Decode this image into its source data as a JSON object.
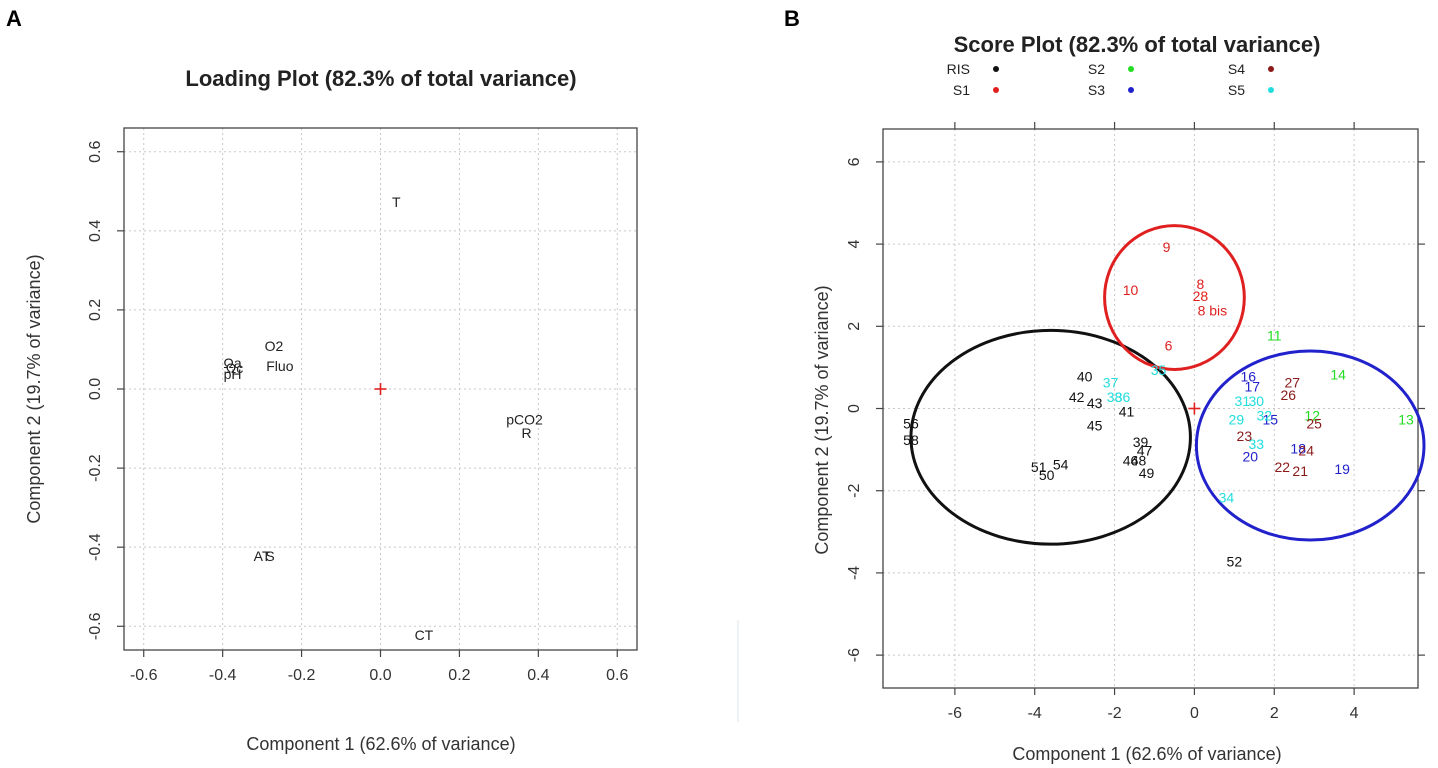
{
  "colors": {
    "RIS": "#111111",
    "S1": "#e02020",
    "S2": "#22dd22",
    "S3": "#2222cc",
    "S4": "#8b1a1a",
    "S5": "#22dddd",
    "origin": "#e02020"
  },
  "chart_data": [
    {
      "panel": "A",
      "type": "scatter",
      "title": "Loading Plot (82.3% of total variance)",
      "xlabel": "Component 1 (62.6% of variance)",
      "ylabel": "Component 2 (19.7% of variance)",
      "xlim": [
        -0.65,
        0.65
      ],
      "ylim": [
        -0.66,
        0.66
      ],
      "xticks": [
        -0.6,
        -0.4,
        -0.2,
        0.0,
        0.2,
        0.4,
        0.6
      ],
      "yticks": [
        -0.6,
        -0.4,
        -0.2,
        0.0,
        0.2,
        0.4,
        0.6
      ],
      "tick_labels_x": [
        "-0.6",
        "-0.4",
        "-0.2",
        "0.0",
        "0.2",
        "0.4",
        "0.6"
      ],
      "tick_labels_y": [
        "-0.6",
        "-0.4",
        "-0.2",
        "0.0",
        "0.2",
        "0.4",
        "0.6"
      ],
      "grid": true,
      "origin_marker": [
        0,
        0
      ],
      "points": [
        {
          "label": "T",
          "x": 0.04,
          "y": 0.47
        },
        {
          "label": "O2",
          "x": -0.27,
          "y": 0.105
        },
        {
          "label": "Fluo",
          "x": -0.255,
          "y": 0.055
        },
        {
          "label": "Ωa",
          "x": -0.375,
          "y": 0.062
        },
        {
          "label": "Ωc",
          "x": -0.37,
          "y": 0.05
        },
        {
          "label": "pH",
          "x": -0.375,
          "y": 0.035
        },
        {
          "label": "pCO2",
          "x": 0.365,
          "y": -0.08
        },
        {
          "label": "R",
          "x": 0.37,
          "y": -0.115
        },
        {
          "label": "AT",
          "x": -0.3,
          "y": -0.425
        },
        {
          "label": "S",
          "x": -0.28,
          "y": -0.425
        },
        {
          "label": "CT",
          "x": 0.11,
          "y": -0.625
        }
      ]
    },
    {
      "panel": "B",
      "type": "scatter",
      "title": "Score Plot (82.3% of total variance)",
      "xlabel": "Component 1 (62.6% of variance)",
      "ylabel": "Component 2 (19.7% of variance)",
      "xlim": [
        -7.8,
        5.6
      ],
      "ylim": [
        -6.8,
        6.8
      ],
      "xticks": [
        -6,
        -4,
        -2,
        0,
        2,
        4
      ],
      "yticks": [
        -6,
        -4,
        -2,
        0,
        2,
        4,
        6
      ],
      "tick_labels_x": [
        "-6",
        "-4",
        "-2",
        "0",
        "2",
        "4"
      ],
      "tick_labels_y": [
        "-6",
        "-4",
        "-2",
        "0",
        "2",
        "4",
        "6"
      ],
      "grid": true,
      "origin_marker": [
        0,
        0
      ],
      "legend": [
        {
          "name": "RIS",
          "group": "RIS"
        },
        {
          "name": "S1",
          "group": "S1"
        },
        {
          "name": "S2",
          "group": "S2"
        },
        {
          "name": "S3",
          "group": "S3"
        },
        {
          "name": "S4",
          "group": "S4"
        },
        {
          "name": "S5",
          "group": "S5"
        }
      ],
      "ellipses": [
        {
          "group": "RIS",
          "cx": -3.6,
          "cy": -0.7,
          "rx": 3.5,
          "ry": 2.6
        },
        {
          "group": "S1",
          "cx": -0.5,
          "cy": 2.7,
          "rx": 1.75,
          "ry": 1.75
        },
        {
          "group": "S3",
          "cx": 2.9,
          "cy": -0.9,
          "rx": 2.85,
          "ry": 2.3
        }
      ],
      "points": [
        {
          "label": "9",
          "x": -0.7,
          "y": 3.9,
          "group": "S1"
        },
        {
          "label": "10",
          "x": -1.6,
          "y": 2.85,
          "group": "S1"
        },
        {
          "label": "8",
          "x": 0.15,
          "y": 3.0,
          "group": "S1"
        },
        {
          "label": "28",
          "x": 0.15,
          "y": 2.7,
          "group": "S1"
        },
        {
          "label": "8 bis",
          "x": 0.45,
          "y": 2.35,
          "group": "S1"
        },
        {
          "label": "6",
          "x": -0.65,
          "y": 1.5,
          "group": "S1"
        },
        {
          "label": "11",
          "x": 2.0,
          "y": 1.75,
          "group": "S2"
        },
        {
          "label": "14",
          "x": 3.6,
          "y": 0.8,
          "group": "S2"
        },
        {
          "label": "12",
          "x": 2.95,
          "y": -0.2,
          "group": "S2"
        },
        {
          "label": "13",
          "x": 5.3,
          "y": -0.3,
          "group": "S2"
        },
        {
          "label": "16",
          "x": 1.35,
          "y": 0.75,
          "group": "S3"
        },
        {
          "label": "17",
          "x": 1.45,
          "y": 0.5,
          "group": "S3"
        },
        {
          "label": "15",
          "x": 1.9,
          "y": -0.3,
          "group": "S3"
        },
        {
          "label": "20",
          "x": 1.4,
          "y": -1.2,
          "group": "S3"
        },
        {
          "label": "18",
          "x": 2.6,
          "y": -1.0,
          "group": "S3"
        },
        {
          "label": "19",
          "x": 3.7,
          "y": -1.5,
          "group": "S3"
        },
        {
          "label": "27",
          "x": 2.45,
          "y": 0.6,
          "group": "S4"
        },
        {
          "label": "26",
          "x": 2.35,
          "y": 0.3,
          "group": "S4"
        },
        {
          "label": "25",
          "x": 3.0,
          "y": -0.4,
          "group": "S4"
        },
        {
          "label": "23",
          "x": 1.25,
          "y": -0.7,
          "group": "S4"
        },
        {
          "label": "24",
          "x": 2.8,
          "y": -1.05,
          "group": "S4"
        },
        {
          "label": "22",
          "x": 2.2,
          "y": -1.45,
          "group": "S4"
        },
        {
          "label": "21",
          "x": 2.65,
          "y": -1.55,
          "group": "S4"
        },
        {
          "label": "37",
          "x": -2.1,
          "y": 0.6,
          "group": "S5"
        },
        {
          "label": "36",
          "x": -1.8,
          "y": 0.25,
          "group": "S5"
        },
        {
          "label": "38",
          "x": -2.0,
          "y": 0.25,
          "group": "S5"
        },
        {
          "label": "35",
          "x": -0.9,
          "y": 0.9,
          "group": "S5"
        },
        {
          "label": "31",
          "x": 1.2,
          "y": 0.15,
          "group": "S5"
        },
        {
          "label": "30",
          "x": 1.55,
          "y": 0.15,
          "group": "S5"
        },
        {
          "label": "29",
          "x": 1.05,
          "y": -0.3,
          "group": "S5"
        },
        {
          "label": "33",
          "x": 1.55,
          "y": -0.9,
          "group": "S5"
        },
        {
          "label": "32",
          "x": 1.75,
          "y": -0.2,
          "group": "S5"
        },
        {
          "label": "34",
          "x": 0.8,
          "y": -2.2,
          "group": "S5"
        },
        {
          "label": "40",
          "x": -2.75,
          "y": 0.75,
          "group": "RIS"
        },
        {
          "label": "42",
          "x": -2.95,
          "y": 0.25,
          "group": "RIS"
        },
        {
          "label": "43",
          "x": -2.5,
          "y": 0.1,
          "group": "RIS"
        },
        {
          "label": "41",
          "x": -1.7,
          "y": -0.1,
          "group": "RIS"
        },
        {
          "label": "45",
          "x": -2.5,
          "y": -0.45,
          "group": "RIS"
        },
        {
          "label": "39",
          "x": -1.35,
          "y": -0.85,
          "group": "RIS"
        },
        {
          "label": "47",
          "x": -1.25,
          "y": -1.05,
          "group": "RIS"
        },
        {
          "label": "46",
          "x": -1.6,
          "y": -1.3,
          "group": "RIS"
        },
        {
          "label": "48",
          "x": -1.4,
          "y": -1.3,
          "group": "RIS"
        },
        {
          "label": "49",
          "x": -1.2,
          "y": -1.6,
          "group": "RIS"
        },
        {
          "label": "51",
          "x": -3.9,
          "y": -1.45,
          "group": "RIS"
        },
        {
          "label": "54",
          "x": -3.35,
          "y": -1.4,
          "group": "RIS"
        },
        {
          "label": "50",
          "x": -3.7,
          "y": -1.65,
          "group": "RIS"
        },
        {
          "label": "56",
          "x": -7.1,
          "y": -0.4,
          "group": "RIS"
        },
        {
          "label": "58",
          "x": -7.1,
          "y": -0.8,
          "group": "RIS"
        },
        {
          "label": "52",
          "x": 1.0,
          "y": -3.75,
          "group": "RIS"
        }
      ]
    }
  ]
}
